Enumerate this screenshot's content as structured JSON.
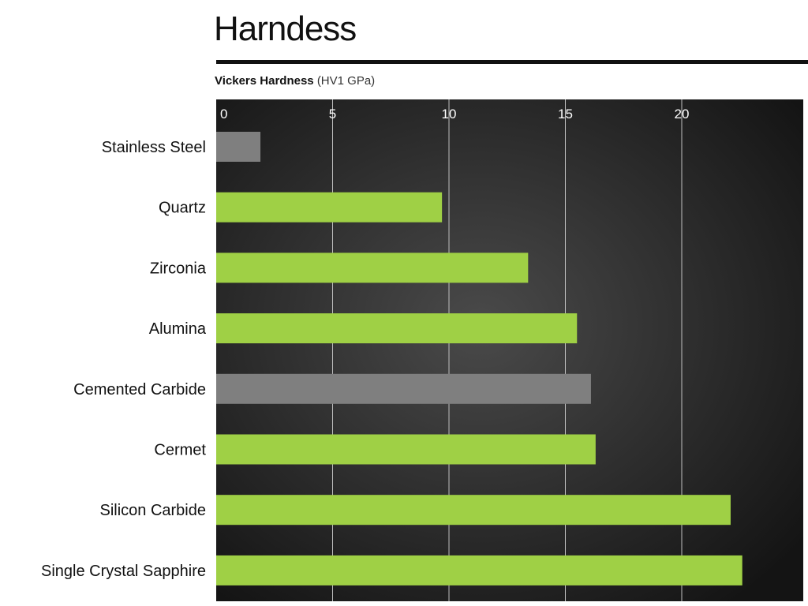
{
  "chart_data": {
    "type": "bar",
    "orientation": "horizontal",
    "title": "Harndess",
    "xlabel_bold": "Vickers Hardness",
    "xlabel_unit": "(HV1 GPa)",
    "ylabel": "",
    "xlim": [
      0,
      24.7
    ],
    "x_ticks": [
      0,
      5,
      10,
      15,
      20
    ],
    "grid": true,
    "categories": [
      "Stainless Steel",
      "Quartz",
      "Zirconia",
      "Alumina",
      "Cemented Carbide",
      "Cermet",
      "Silicon Carbide",
      "Single Crystal Sapphire"
    ],
    "values": [
      1.9,
      9.7,
      13.4,
      15.5,
      16.1,
      16.3,
      22.1,
      22.6
    ],
    "bar_colors": [
      "#7f7f7f",
      "#9fd045",
      "#9fd045",
      "#9fd045",
      "#7f7f7f",
      "#9fd045",
      "#9fd045",
      "#9fd045"
    ]
  },
  "colors": {
    "plot_bg_center": "#4a4a4a",
    "plot_bg_edge": "#141414",
    "gridline": "#bfbfbf",
    "tick_label": "#ffffff",
    "category_label": "#111111"
  }
}
